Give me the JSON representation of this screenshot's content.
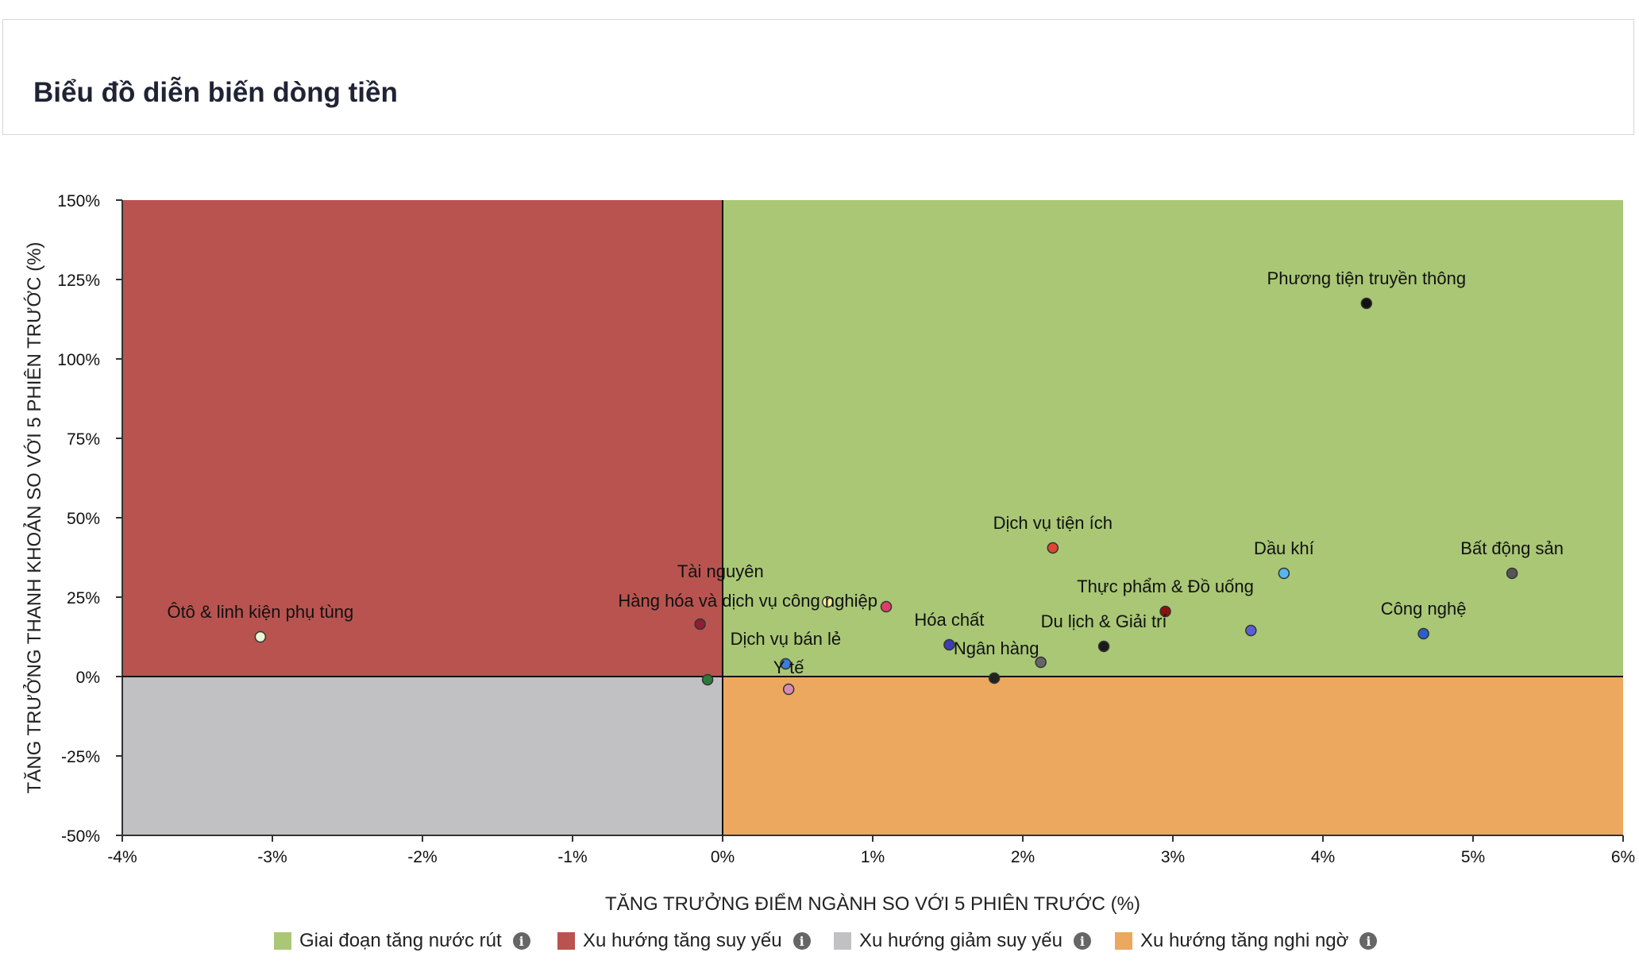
{
  "page": {
    "title": "Biểu đồ diễn biến dòng tiền"
  },
  "chart_data": {
    "type": "scatter",
    "xlabel": "TĂNG TRƯỞNG ĐIỂM NGÀNH SO VỚI 5 PHIÊN TRƯỚC (%)",
    "ylabel": "TĂNG TRƯỞNG THANH KHOẢN SO VỚI 5 PHIÊN TRƯỚC (%)",
    "xlim": [
      -4,
      6
    ],
    "ylim": [
      -50,
      150
    ],
    "xticks": [
      -4,
      -3,
      -2,
      -1,
      0,
      1,
      2,
      3,
      4,
      5,
      6
    ],
    "xtick_labels": [
      "-4%",
      "-3%",
      "-2%",
      "-1%",
      "0%",
      "1%",
      "2%",
      "3%",
      "4%",
      "5%",
      "6%"
    ],
    "yticks": [
      150,
      125,
      100,
      75,
      50,
      25,
      0,
      -25,
      -50
    ],
    "ytick_labels": [
      "150%",
      "125%",
      "100%",
      "75%",
      "50%",
      "25%",
      "0%",
      "-25%",
      "-50%"
    ],
    "quadrants": [
      {
        "name": "Giai đoạn tăng nước rút",
        "color": "#a9c775",
        "x": [
          0,
          6
        ],
        "y": [
          0,
          150
        ]
      },
      {
        "name": "Xu hướng tăng suy yếu",
        "color": "#b9534f",
        "x": [
          -4,
          0
        ],
        "y": [
          0,
          150
        ]
      },
      {
        "name": "Xu hướng giảm suy yếu",
        "color": "#c1c1c4",
        "x": [
          -4,
          0
        ],
        "y": [
          -50,
          0
        ]
      },
      {
        "name": "Xu hướng tăng nghi ngờ",
        "color": "#eca85e",
        "x": [
          0,
          6
        ],
        "y": [
          -50,
          0
        ]
      }
    ],
    "points": [
      {
        "label": "Phương tiện truyền thông",
        "x": 4.29,
        "y": 117.5,
        "color": "#111111",
        "label_pos": "above"
      },
      {
        "label": "Dịch vụ tiện ích",
        "x": 2.2,
        "y": 40.5,
        "color": "#e0452e",
        "label_pos": "above"
      },
      {
        "label": "Dầu khí",
        "x": 3.74,
        "y": 32.5,
        "color": "#55b8ec",
        "label_pos": "above"
      },
      {
        "label": "Bất động sản",
        "x": 5.26,
        "y": 32.5,
        "color": "#555555",
        "label_pos": "above"
      },
      {
        "label": "Thực phẩm & Đồ uống",
        "x": 2.95,
        "y": 20.5,
        "color": "#8b1111",
        "label_pos": "above"
      },
      {
        "label": "",
        "x": 3.52,
        "y": 14.5,
        "color": "#5b5fd6",
        "label_pos": "none"
      },
      {
        "label": "Công nghệ",
        "x": 4.67,
        "y": 13.5,
        "color": "#2e5fc8",
        "label_pos": "above"
      },
      {
        "label": "Du lịch & Giải trí",
        "x": 2.54,
        "y": 9.5,
        "color": "#1a1a1a",
        "label_pos": "above"
      },
      {
        "label": "Hóa chất",
        "x": 1.51,
        "y": 10.0,
        "color": "#3d3fb0",
        "label_pos": "above"
      },
      {
        "label": "Ngân hàng",
        "x": 2.12,
        "y": 4.5,
        "color": "#666666",
        "label_pos": "left-above"
      },
      {
        "label": "",
        "x": 1.81,
        "y": -0.5,
        "color": "#222222",
        "label_pos": "none"
      },
      {
        "label": "",
        "x": 1.09,
        "y": 22.0,
        "color": "#e03e6a",
        "label_pos": "none"
      },
      {
        "label": "Tài nguyên",
        "x": 0.7,
        "y": 23.5,
        "color": "#f4ef9a",
        "label_pos": "tainguyen"
      },
      {
        "label": "Hàng hóa và dịch vụ công nghiệp",
        "x": -0.15,
        "y": 16.5,
        "color": "#8b1f35",
        "label_pos": "hanghoa"
      },
      {
        "label": "Dịch vụ bán lẻ",
        "x": 0.42,
        "y": 4.0,
        "color": "#3d7bd6",
        "label_pos": "above"
      },
      {
        "label": "Y tế",
        "x": 0.44,
        "y": -4.0,
        "color": "#d98ab3",
        "label_pos": "above-tight"
      },
      {
        "label": "",
        "x": -0.1,
        "y": -1.0,
        "color": "#2c7a3a",
        "label_pos": "none"
      },
      {
        "label": "Ôtô & linh kiện phụ tùng",
        "x": -3.08,
        "y": 12.5,
        "color": "#e9f7d5",
        "label_pos": "above"
      }
    ]
  },
  "legend": [
    {
      "label": "Giai đoạn tăng nước rút",
      "color": "#a9c775",
      "info": "i"
    },
    {
      "label": "Xu hướng tăng suy yếu",
      "color": "#b9534f",
      "info": "i"
    },
    {
      "label": "Xu hướng giảm suy yếu",
      "color": "#c1c1c4",
      "info": "i"
    },
    {
      "label": "Xu hướng tăng nghi ngờ",
      "color": "#eca85e",
      "info": "i"
    }
  ]
}
